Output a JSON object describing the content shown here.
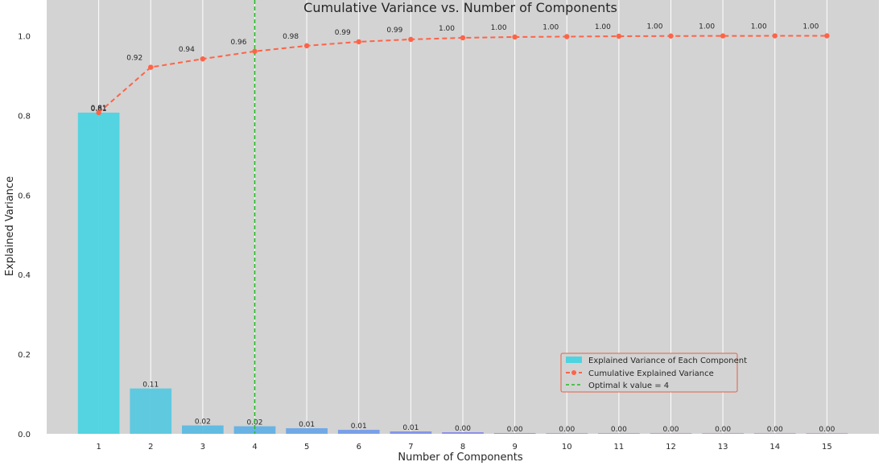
{
  "chart_data": {
    "type": "bar",
    "title": "Cumulative Variance vs. Number of Components",
    "xlabel": "Number of Components",
    "ylabel": "Explained Variance",
    "categories": [
      "1",
      "2",
      "3",
      "4",
      "5",
      "6",
      "7",
      "8",
      "9",
      "10",
      "11",
      "12",
      "13",
      "14",
      "15"
    ],
    "xlim": [
      0.0,
      16.0
    ],
    "ylim": [
      0,
      1.05
    ],
    "yticks": [
      0.0,
      0.2,
      0.4,
      0.6,
      0.8,
      1.0
    ],
    "ytick_labels": [
      "0.0",
      "0.2",
      "0.4",
      "0.6",
      "0.8",
      "1.0"
    ],
    "grid": "vertical",
    "background": "#d3d3d3",
    "legend_position": "lower-right",
    "series": [
      {
        "name": "Explained Variance of Each Component",
        "type": "bar",
        "values": [
          0.807,
          0.114,
          0.021,
          0.019,
          0.014,
          0.01,
          0.006,
          0.004,
          0.002,
          0.001,
          0.001,
          0.0005,
          0.0003,
          0.0002,
          0.0001
        ],
        "labels": [
          "0.81",
          "0.11",
          "0.02",
          "0.02",
          "0.01",
          "0.01",
          "0.01",
          "0.00",
          "0.00",
          "0.00",
          "0.00",
          "0.00",
          "0.00",
          "0.00",
          "0.00"
        ],
        "colors": [
          "#4dd4e0",
          "#58c8df",
          "#5cbbe2",
          "#62b1e4",
          "#6aa6e6",
          "#749ce9",
          "#7e92ea",
          "#8a8bec",
          "#9586ed",
          "#a082ef",
          "#aa7ff0",
          "#b37cf1",
          "#bb7af2",
          "#c278f3",
          "#c977f4"
        ]
      },
      {
        "name": "Cumulative Explained Variance",
        "type": "line",
        "values": [
          0.807,
          0.921,
          0.942,
          0.961,
          0.975,
          0.985,
          0.991,
          0.995,
          0.997,
          0.998,
          0.999,
          0.9995,
          0.9998,
          0.9999,
          1.0
        ],
        "labels": [
          "0.81",
          "0.92",
          "0.94",
          "0.96",
          "0.98",
          "0.99",
          "0.99",
          "1.00",
          "1.00",
          "1.00",
          "1.00",
          "1.00",
          "1.00",
          "1.00",
          "1.00"
        ],
        "color": "#ff6347"
      },
      {
        "name": "Optimal k value = 4",
        "type": "vline",
        "x": 4,
        "color": "#22bb22"
      }
    ]
  }
}
